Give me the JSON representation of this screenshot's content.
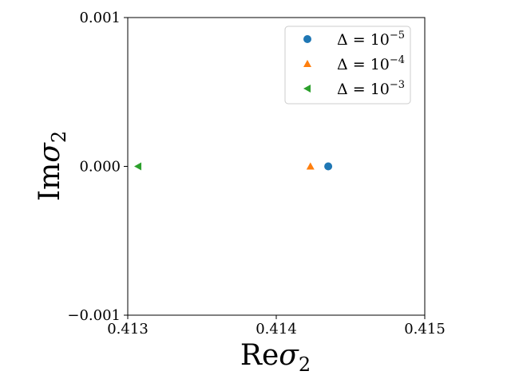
{
  "chart_data": {
    "type": "scatter",
    "title": "",
    "xlabel": {
      "main": "Re",
      "sym": "σ",
      "sub": "2"
    },
    "ylabel": {
      "main": "Im",
      "sym": "σ",
      "sub": "2"
    },
    "xlim": [
      0.413,
      0.415
    ],
    "ylim": [
      -0.001,
      0.001
    ],
    "xticks": [
      {
        "value": 0.413,
        "label": "0.413"
      },
      {
        "value": 0.414,
        "label": "0.414"
      },
      {
        "value": 0.415,
        "label": "0.415"
      }
    ],
    "yticks": [
      {
        "value": 0.001,
        "label": "0.001"
      },
      {
        "value": 0.0,
        "label": "0.000"
      },
      {
        "value": -0.001,
        "label": "−0.001"
      }
    ],
    "grid": false,
    "legend_position": "top-right",
    "series": [
      {
        "name_base": "Δ = 10",
        "name_exp": "−5",
        "marker": "circle",
        "color": "#1f77b4",
        "x": [
          0.41435
        ],
        "y": [
          0.0
        ]
      },
      {
        "name_base": "Δ = 10",
        "name_exp": "−4",
        "marker": "triangle-up",
        "color": "#ff7f0e",
        "x": [
          0.41423
        ],
        "y": [
          0.0
        ]
      },
      {
        "name_base": "Δ = 10",
        "name_exp": "−3",
        "marker": "triangle-left",
        "color": "#2ca02c",
        "x": [
          0.41307
        ],
        "y": [
          0.0
        ]
      }
    ]
  }
}
